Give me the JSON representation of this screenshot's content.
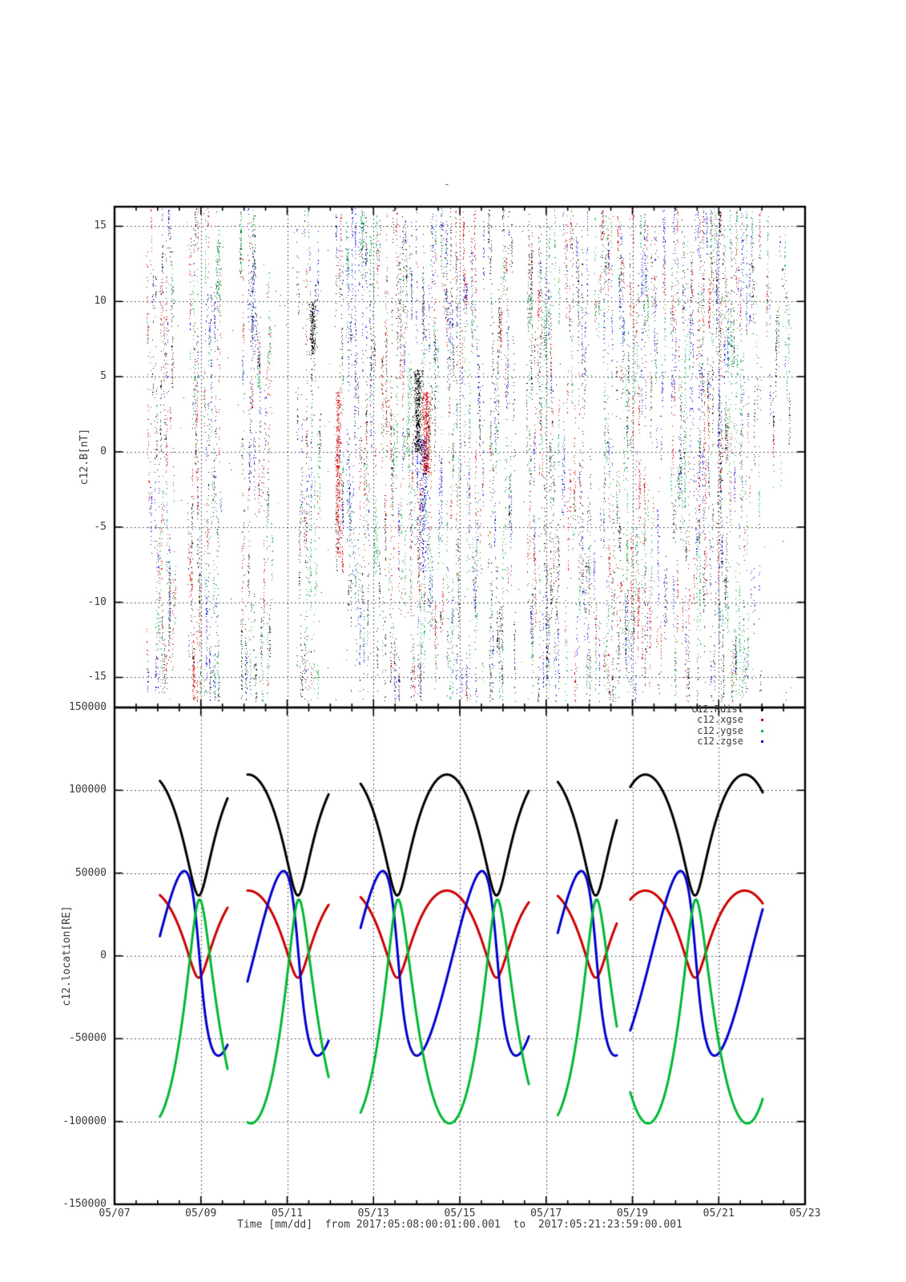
{
  "title": "-",
  "time_axis": {
    "xlabel": "Time [mm/dd]  from 2017:05:08:00:01:00.001  to  2017:05:21:23:59:00.001",
    "span_days": 16,
    "major_tick_every_days": 2,
    "minor_tick_every_days": 0.5,
    "tick_labels": [
      "05/07",
      "05/09",
      "05/11",
      "05/13",
      "05/15",
      "05/17",
      "05/19",
      "05/21",
      "05/23"
    ]
  },
  "panels": [
    {
      "name": "field",
      "ylabel": "c12.B[nT]",
      "ylim": [
        -17,
        16.3
      ],
      "yticks": [
        15,
        10,
        5,
        0,
        -5,
        -10,
        -15
      ],
      "grid": "dotted"
    },
    {
      "name": "location",
      "ylabel": "c12.location[RE]",
      "ylim": [
        -150000,
        150000
      ],
      "yticks": [
        150000,
        100000,
        50000,
        0,
        -50000,
        -100000,
        -150000
      ],
      "grid": "dotted",
      "legend_position": "top-right-inside",
      "legend": [
        {
          "label": "c12.Rdist",
          "color": "#000000"
        },
        {
          "label": "c12.xgse",
          "color": "#cc0000"
        },
        {
          "label": "c12.ygse",
          "color": "#00b834"
        },
        {
          "label": "c12.zgse",
          "color": "#0000cc"
        }
      ]
    }
  ],
  "chart_data": [
    {
      "type": "scatter",
      "panel": "field",
      "title": "",
      "xlabel": "Time [mm/dd]",
      "ylabel": "c12.B[nT]",
      "x_unit": "days since 2017-05-07 00:00",
      "ylim": [
        -17,
        16.3
      ],
      "point_colors": {
        "k": "#000000",
        "r": "#cc0000",
        "g": "#00a040",
        "b": "#0000cc"
      },
      "seed": 1337,
      "band_format": "[t_start_days, t_end_days, n_points, [weight_black,weight_red,weight_green,weight_blue], y_min_nT, y_max_nT]",
      "bands": [
        [
          0.75,
          1.15,
          650,
          [
            2,
            2,
            2,
            3
          ],
          -16,
          16.2
        ],
        [
          1.15,
          1.4,
          500,
          [
            2,
            2,
            1,
            2
          ],
          -16,
          16.2
        ],
        [
          1.7,
          2.0,
          700,
          [
            2,
            3,
            1,
            1
          ],
          -16.6,
          16.2
        ],
        [
          2.05,
          2.5,
          800,
          [
            2,
            2,
            3,
            2
          ],
          -16.6,
          16.2
        ],
        [
          2.9,
          3.3,
          800,
          [
            2,
            1,
            2,
            3
          ],
          -16.6,
          16.2
        ],
        [
          3.3,
          3.65,
          500,
          [
            1,
            2,
            3,
            1
          ],
          -16.6,
          12
        ],
        [
          4.2,
          4.75,
          750,
          [
            3,
            2,
            2,
            2
          ],
          -16.6,
          16.2
        ],
        [
          5.1,
          5.3,
          350,
          [
            1,
            3,
            1,
            1
          ],
          -8,
          16
        ],
        [
          5.35,
          5.6,
          500,
          [
            1,
            0,
            1,
            4
          ],
          -16.6,
          16.2
        ],
        [
          5.63,
          5.95,
          650,
          [
            2,
            1,
            2,
            3
          ],
          -16.6,
          16.2
        ],
        [
          5.98,
          6.5,
          800,
          [
            2,
            2,
            3,
            1
          ],
          -16.6,
          16.2
        ],
        [
          6.52,
          6.95,
          900,
          [
            2,
            2,
            2,
            2
          ],
          -16.6,
          16.2
        ],
        [
          6.95,
          7.55,
          1100,
          [
            3,
            2,
            2,
            2
          ],
          -16.6,
          16.2
        ],
        [
          7.55,
          7.85,
          600,
          [
            1,
            2,
            3,
            2
          ],
          -16.6,
          16.2
        ],
        [
          7.85,
          8.18,
          500,
          [
            1,
            3,
            1,
            2
          ],
          -16.6,
          16.2
        ],
        [
          8.2,
          8.55,
          550,
          [
            1,
            2,
            2,
            3
          ],
          -16.6,
          16.2
        ],
        [
          8.65,
          9.0,
          700,
          [
            3,
            1,
            3,
            1
          ],
          -16.6,
          16.2
        ],
        [
          9.02,
          9.28,
          350,
          [
            2,
            2,
            1,
            2
          ],
          -16.6,
          16.2
        ],
        [
          9.5,
          9.9,
          800,
          [
            3,
            2,
            2,
            1
          ],
          -16.6,
          16.2
        ],
        [
          9.9,
          10.3,
          800,
          [
            2,
            2,
            2,
            2
          ],
          -16.6,
          16.2
        ],
        [
          10.35,
          10.68,
          400,
          [
            1,
            2,
            2,
            1
          ],
          -16.6,
          16.2
        ],
        [
          10.7,
          11.05,
          550,
          [
            2,
            1,
            1,
            3
          ],
          -16.6,
          16.2
        ],
        [
          11.08,
          11.5,
          650,
          [
            1,
            2,
            3,
            2
          ],
          -16.6,
          16.2
        ],
        [
          11.52,
          12.0,
          900,
          [
            3,
            2,
            2,
            2
          ],
          -16.6,
          16.2
        ],
        [
          12.0,
          12.36,
          800,
          [
            2,
            2,
            2,
            2
          ],
          -16.6,
          16.2
        ],
        [
          12.4,
          12.78,
          500,
          [
            2,
            2,
            1,
            2
          ],
          -16.6,
          16.2
        ],
        [
          12.88,
          13.38,
          950,
          [
            2,
            2,
            2,
            2
          ],
          -16.6,
          16.2
        ],
        [
          13.38,
          13.8,
          950,
          [
            2,
            3,
            1,
            3
          ],
          -16.6,
          16.2
        ],
        [
          13.8,
          14.22,
          1100,
          [
            3,
            2,
            2,
            3
          ],
          -16.6,
          16.2
        ],
        [
          14.22,
          14.68,
          900,
          [
            2,
            1,
            4,
            2
          ],
          -16.6,
          16.2
        ],
        [
          14.7,
          15.0,
          250,
          [
            1,
            1,
            2,
            2
          ],
          -16.6,
          16.2
        ],
        [
          15.05,
          15.65,
          350,
          [
            2,
            1,
            2,
            2
          ],
          -3,
          16.2
        ]
      ],
      "blob_format": "[t_center_days, t_sigma_days, y_min_nT, y_max_nT, n_points, color_key]",
      "blobs": [
        [
          7.02,
          0.05,
          0.0,
          5.5,
          500,
          "k"
        ],
        [
          7.22,
          0.05,
          -1.5,
          4.0,
          450,
          "r"
        ],
        [
          7.15,
          0.05,
          -8,
          1,
          250,
          "b"
        ],
        [
          5.18,
          0.03,
          -7,
          4,
          300,
          "r"
        ],
        [
          4.58,
          0.03,
          6.5,
          10,
          200,
          "k"
        ]
      ],
      "background_points": {
        "n": 350,
        "t_range": [
          0.7,
          15.7
        ],
        "y_range": [
          -16.5,
          16.2
        ]
      }
    },
    {
      "type": "line",
      "panel": "location",
      "title": "",
      "xlabel": "Time [mm/dd]",
      "ylabel": "c12.location[RE]",
      "x_unit": "days since 2017-05-07 00:00",
      "ylim": [
        -150000,
        150000
      ],
      "model": "kepler-orbit: value = c0 + cE*cos(E) + sE*sin(E), where E solves E - e*sin(E) = 2*pi*(t - perigee_day)/period_days",
      "period_days": 2.3,
      "perigee_day": 1.95,
      "eccentricity": 0.5,
      "semi_major_axis": 73000,
      "segments_days": [
        [
          1.05,
          2.62
        ],
        [
          3.08,
          4.96
        ],
        [
          5.7,
          9.6
        ],
        [
          10.27,
          11.64
        ],
        [
          11.95,
          15.02
        ]
      ],
      "sample_step_days": 0.004,
      "line_width": 3,
      "series": [
        {
          "name": "c12.Rdist",
          "color": "#000000",
          "c0": 73000,
          "cE": -36500,
          "sE": 0,
          "value_range": [
            36500,
            109500
          ]
        },
        {
          "name": "c12.xgse",
          "color": "#cc0000",
          "c0": 13140,
          "cE": -26280,
          "sE": 0,
          "value_range": [
            -13140,
            39420
          ]
        },
        {
          "name": "c12.ygse",
          "color": "#00b834",
          "c0": -33580,
          "cE": 67160,
          "sE": 7580,
          "value_range": [
            -101500,
            34000
          ]
        },
        {
          "name": "c12.zgse",
          "color": "#0000cc",
          "c0": -4500,
          "cE": 9000,
          "sE": -55000,
          "value_range": [
            -60500,
            52000
          ]
        }
      ]
    }
  ]
}
